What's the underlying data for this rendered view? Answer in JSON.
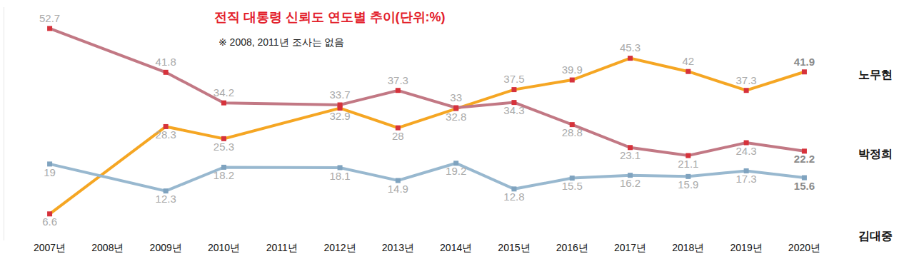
{
  "chart_data": {
    "type": "line",
    "title": "전직 대통령 신뢰도 연도별 추이(단위:%)",
    "subtitle": "※ 2008, 2011년 조사는 없음",
    "categories": [
      "2007년",
      "2008년",
      "2009년",
      "2010년",
      "2011년",
      "2012년",
      "2013년",
      "2014년",
      "2015년",
      "2016년",
      "2017년",
      "2018년",
      "2019년",
      "2020년"
    ],
    "series": [
      {
        "name": "노무현",
        "color": "#f5a623",
        "values": [
          6.6,
          null,
          28.3,
          25.3,
          null,
          32.9,
          28,
          32.8,
          37.5,
          39.9,
          45.3,
          42,
          37.3,
          41.9
        ]
      },
      {
        "name": "박정희",
        "color": "#c27884",
        "values": [
          52.7,
          null,
          41.8,
          34.2,
          null,
          33.7,
          37.3,
          33,
          34.3,
          28.8,
          23.1,
          21.1,
          24.3,
          22.2
        ]
      },
      {
        "name": "김대중",
        "color": "#98b8cf",
        "values": [
          19,
          null,
          12.3,
          18.2,
          null,
          18.1,
          14.9,
          19.2,
          12.8,
          15.5,
          16.2,
          15.9,
          17.3,
          15.6
        ]
      }
    ],
    "ylim": [
      0,
      58
    ],
    "yticks": [],
    "grid": false,
    "data_labels": true,
    "tick_labels": "x",
    "marker": "square"
  }
}
